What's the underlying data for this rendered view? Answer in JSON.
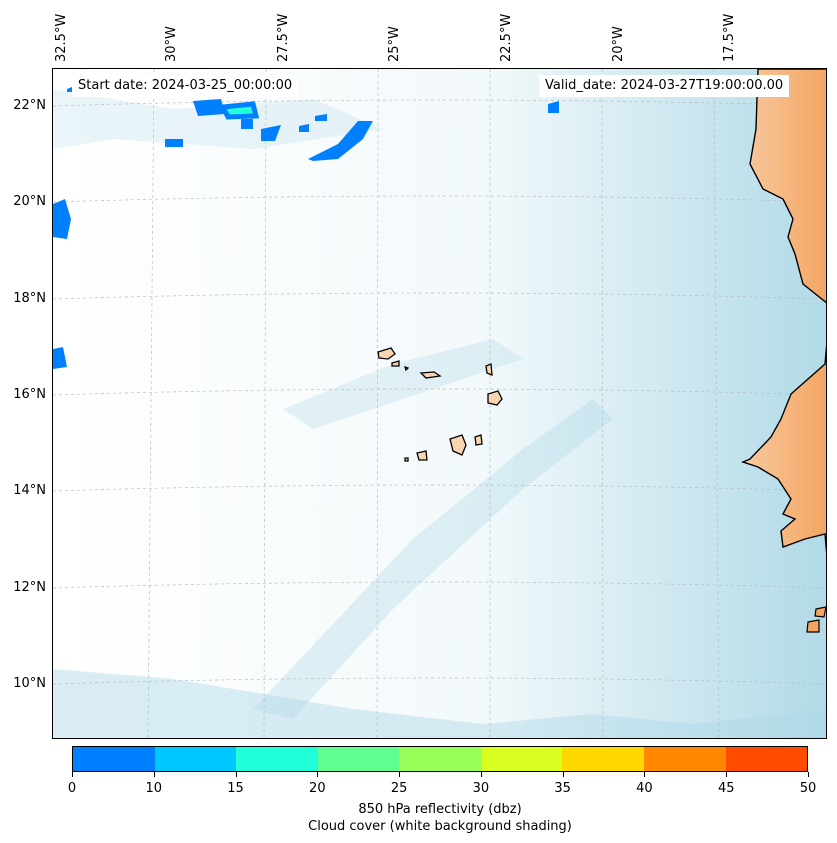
{
  "map": {
    "region": "Eastern tropical Atlantic / West Africa coast (Cape Verde Islands)",
    "top_ticks": [
      "32.5°W",
      "30°W",
      "27.5°W",
      "25°W",
      "22.5°W",
      "20°W",
      "17.5°W"
    ],
    "left_ticks": [
      "22°N",
      "20°N",
      "18°N",
      "16°N",
      "14°N",
      "12°N",
      "10°N"
    ],
    "start_date": "Start date: 2024-03-25_00:00:00",
    "valid_date": "Valid_date: 2024-03-27T19:00:00.00",
    "colors": {
      "ocean_cloud": "#add8e6",
      "land_dust": "#f4a460",
      "gridline": "#cccccc",
      "coastline": "#000000"
    }
  },
  "colorbar": {
    "ticks": [
      "0",
      "10",
      "15",
      "20",
      "25",
      "30",
      "35",
      "40",
      "45",
      "50"
    ],
    "colors": [
      "#0080ff",
      "#00c8ff",
      "#20ffd8",
      "#60ff90",
      "#98ff58",
      "#d8ff20",
      "#ffd800",
      "#ff8800",
      "#ff4c00"
    ],
    "label_line1": "850 hPa reflectivity (dbz)",
    "label_line2": "Cloud cover (white background shading)"
  }
}
